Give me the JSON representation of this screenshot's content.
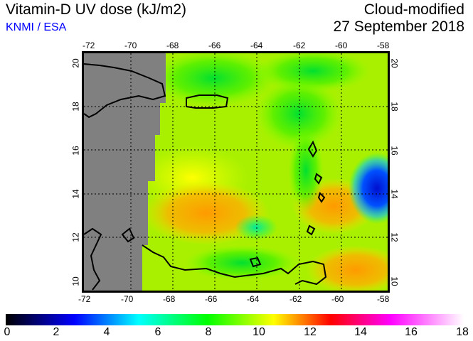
{
  "header": {
    "title": "Vitamin-D UV dose (kJ/m2)",
    "credit": "KNMI / ESA",
    "product": "Cloud-modified",
    "date": "27 September 2018"
  },
  "map": {
    "lon_ticks": [
      "-72",
      "-70",
      "-68",
      "-66",
      "-64",
      "-62",
      "-60",
      "-58"
    ],
    "lat_ticks": [
      "20",
      "18",
      "16",
      "14",
      "12",
      "10"
    ],
    "lon_range": [
      -72.3,
      -57.7
    ],
    "lat_range": [
      9.5,
      20.5
    ],
    "no_data_color": "#808080"
  },
  "colorbar": {
    "labels": [
      "0",
      "2",
      "4",
      "6",
      "8",
      "10",
      "12",
      "14",
      "16",
      "18"
    ],
    "min": 0,
    "max": 18
  }
}
